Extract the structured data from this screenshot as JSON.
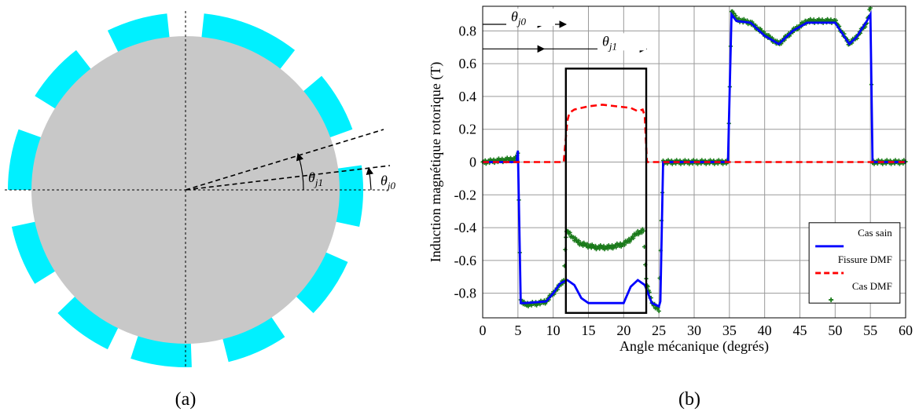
{
  "colors": {
    "pole": "#00f0ff",
    "rotor": "#c8c8c8",
    "cas_sain": "#0000ff",
    "fissure_dmf": "#ff0000",
    "cas_dmf": "#1a7a1a",
    "grid": "#9a9a9a"
  },
  "diagram": {
    "caption": "(a)",
    "theta_j1": {
      "symbol": "θ",
      "sub": "j1"
    },
    "theta_j0": {
      "symbol": "θ",
      "sub": "j0"
    }
  },
  "chart_caption": "(b)",
  "chart_data": {
    "type": "line",
    "xlabel": "Angle mécanique (degrés)",
    "ylabel": "Induction magnétique rotorique (T)",
    "xlim": [
      0,
      60
    ],
    "ylim": [
      -0.95,
      0.95
    ],
    "xticks": [
      "0",
      "5",
      "10",
      "15",
      "20",
      "25",
      "30",
      "35",
      "40",
      "45",
      "50",
      "55",
      "60"
    ],
    "yticks": [
      "0.8",
      "0.6",
      "0.4",
      "0.2",
      "0",
      "-0.2",
      "-0.4",
      "-0.6",
      "-0.8"
    ],
    "ytick_values": [
      0.8,
      0.6,
      0.4,
      0.2,
      0,
      -0.2,
      -0.4,
      -0.6,
      -0.8
    ],
    "grid": true,
    "legend_position": "bottom-right",
    "series": [
      {
        "name": "Cas sain",
        "style": "solid",
        "points": [
          [
            0,
            0
          ],
          [
            4.8,
            0
          ],
          [
            5,
            0.07
          ],
          [
            5.4,
            -0.86
          ],
          [
            6,
            -0.86
          ],
          [
            9,
            -0.85
          ],
          [
            10,
            -0.8
          ],
          [
            11,
            -0.74
          ],
          [
            12,
            -0.72
          ],
          [
            13,
            -0.75
          ],
          [
            14,
            -0.83
          ],
          [
            15,
            -0.86
          ],
          [
            20,
            -0.86
          ],
          [
            21,
            -0.76
          ],
          [
            22,
            -0.72
          ],
          [
            23,
            -0.75
          ],
          [
            24,
            -0.86
          ],
          [
            25,
            -0.88
          ],
          [
            25.2,
            -0.85
          ],
          [
            25.6,
            0
          ],
          [
            34.8,
            0
          ],
          [
            35.3,
            0.9
          ],
          [
            36,
            0.86
          ],
          [
            38,
            0.85
          ],
          [
            40,
            0.77
          ],
          [
            42,
            0.72
          ],
          [
            44,
            0.8
          ],
          [
            46,
            0.85
          ],
          [
            50,
            0.85
          ],
          [
            52,
            0.72
          ],
          [
            53,
            0.76
          ],
          [
            54.5,
            0.86
          ],
          [
            55,
            0.9
          ],
          [
            55.3,
            0
          ],
          [
            60,
            0
          ]
        ]
      },
      {
        "name": "Fissure DMF",
        "style": "dashed",
        "points": [
          [
            0,
            0
          ],
          [
            11.5,
            0
          ],
          [
            12,
            0.25
          ],
          [
            12.3,
            0.3
          ],
          [
            13,
            0.32
          ],
          [
            15,
            0.34
          ],
          [
            17,
            0.35
          ],
          [
            19,
            0.34
          ],
          [
            21,
            0.33
          ],
          [
            22,
            0.31
          ],
          [
            22.7,
            0.32
          ],
          [
            23,
            0.28
          ],
          [
            23.3,
            0
          ],
          [
            60,
            0
          ]
        ]
      },
      {
        "name": "Cas DMF",
        "style": "markers",
        "points": [
          [
            0,
            0
          ],
          [
            4.8,
            0.02
          ],
          [
            5,
            0.06
          ],
          [
            5.4,
            -0.84
          ],
          [
            6,
            -0.87
          ],
          [
            8,
            -0.86
          ],
          [
            9,
            -0.85
          ],
          [
            10,
            -0.8
          ],
          [
            11,
            -0.75
          ],
          [
            11.5,
            -0.72
          ],
          [
            11.8,
            -0.45
          ],
          [
            12,
            -0.42
          ],
          [
            13,
            -0.47
          ],
          [
            14,
            -0.5
          ],
          [
            16,
            -0.52
          ],
          [
            18,
            -0.52
          ],
          [
            20,
            -0.5
          ],
          [
            21,
            -0.47
          ],
          [
            22,
            -0.43
          ],
          [
            22.8,
            -0.42
          ],
          [
            23.2,
            -0.72
          ],
          [
            24,
            -0.86
          ],
          [
            25,
            -0.9
          ],
          [
            25.6,
            0
          ],
          [
            34.8,
            0
          ],
          [
            35.3,
            0.93
          ],
          [
            36,
            0.87
          ],
          [
            38,
            0.85
          ],
          [
            40,
            0.78
          ],
          [
            42,
            0.72
          ],
          [
            44,
            0.8
          ],
          [
            46,
            0.86
          ],
          [
            50,
            0.86
          ],
          [
            52,
            0.72
          ],
          [
            53,
            0.76
          ],
          [
            54.5,
            0.85
          ],
          [
            55,
            0.94
          ],
          [
            55.3,
            0
          ],
          [
            60,
            0
          ]
        ]
      }
    ],
    "annotations": {
      "box": {
        "x0": 11.8,
        "x1": 23.2,
        "y0": -0.92,
        "y1": 0.57
      },
      "theta_j0": {
        "symbol": "θ",
        "sub": "j0",
        "y": 0.84,
        "x_end": 11.8
      },
      "theta_j1": {
        "symbol": "θ",
        "sub": "j1",
        "y": 0.69,
        "x_end": 23.2
      }
    }
  }
}
